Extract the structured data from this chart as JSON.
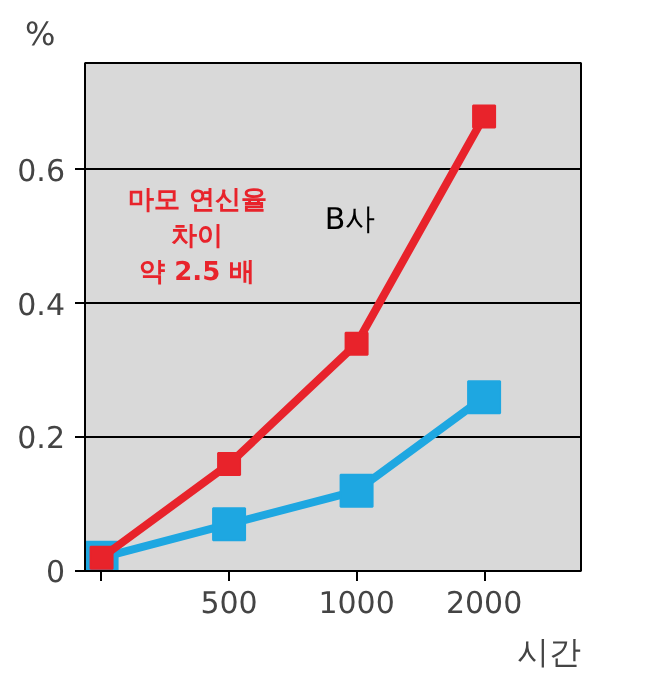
{
  "chart_data": {
    "type": "line",
    "ylabel": "%",
    "xlabel": "시간",
    "categories": [
      null,
      "500",
      "1000",
      "2000"
    ],
    "series": [
      {
        "name": "B사",
        "color": "#e8232b",
        "values": [
          0.02,
          0.16,
          0.34,
          0.68
        ]
      },
      {
        "color": "#1ea7e1",
        "values": [
          0.02,
          0.07,
          0.12,
          0.26
        ]
      }
    ],
    "ylim": [
      0,
      0.76
    ],
    "yticks": [
      0,
      0.2,
      0.4,
      0.6
    ],
    "grid": "y",
    "marker": "square",
    "line_style": "solid",
    "annotations": [
      "마모 연신율\n차이\n약 2.5 배"
    ]
  }
}
